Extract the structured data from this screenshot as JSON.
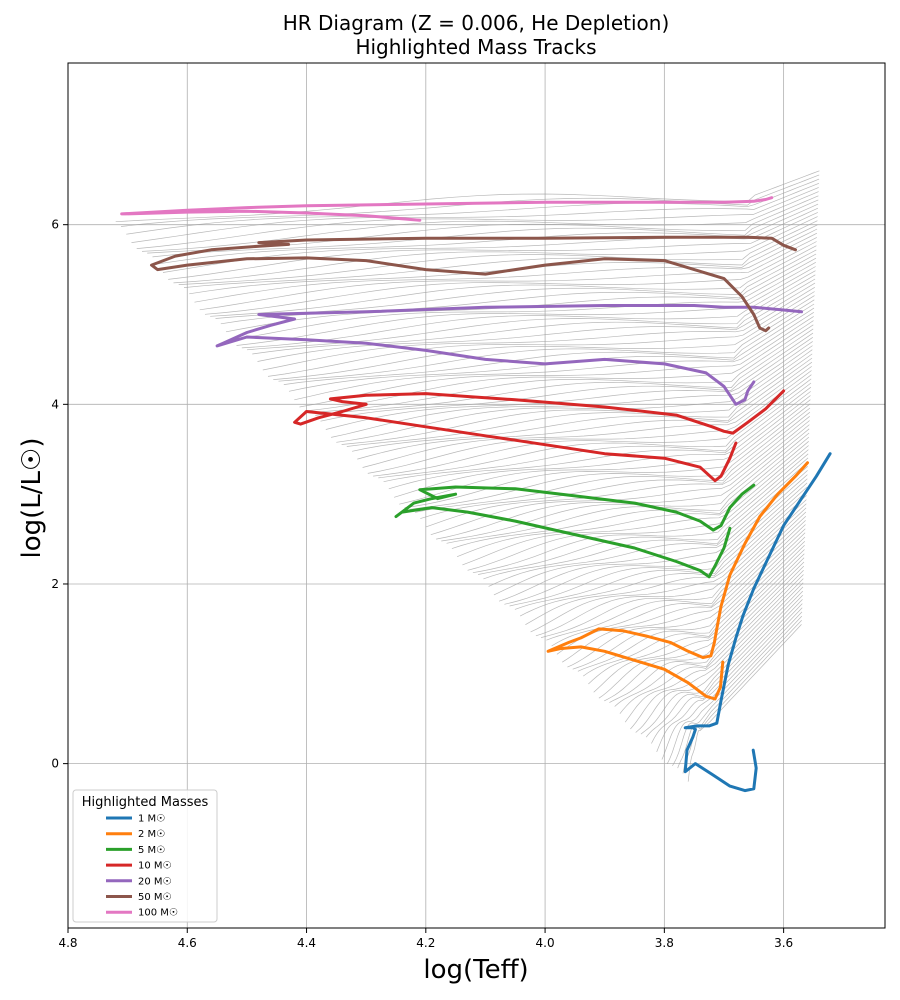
{
  "chart_data": {
    "type": "line",
    "title": "HR Diagram (Z = 0.006, He Depletion)",
    "subtitle": "Highlighted Mass Tracks",
    "xlabel": "log(Teff)",
    "ylabel": "log(L/L☉)",
    "xlim": [
      4.8,
      3.43
    ],
    "ylim": [
      -1.83,
      7.8
    ],
    "x_inverted": true,
    "grid": true,
    "x_ticks": [
      "4.8",
      "4.6",
      "4.4",
      "4.2",
      "4.0",
      "3.8",
      "3.6"
    ],
    "y_ticks": [
      "0",
      "2",
      "4",
      "6"
    ],
    "legend": {
      "title": "Highlighted Masses",
      "placement": "lower-left",
      "entries": [
        "1 M☉",
        "2 M☉",
        "5 M☉",
        "10 M☉",
        "20 M☉",
        "50 M☉",
        "100 M☉"
      ]
    },
    "series": [
      {
        "name": "1 M☉",
        "color": "#1f77b4",
        "x": [
          3.651,
          3.646,
          3.65,
          3.665,
          3.69,
          3.72,
          3.748,
          3.765,
          3.762,
          3.752,
          3.748,
          3.752,
          3.763,
          3.765,
          3.745,
          3.725,
          3.712,
          3.705,
          3.693,
          3.68,
          3.668,
          3.65,
          3.625,
          3.6,
          3.57,
          3.545,
          3.522
        ],
        "y": [
          0.15,
          -0.05,
          -0.28,
          -0.3,
          -0.25,
          -0.12,
          0.0,
          -0.09,
          0.15,
          0.3,
          0.38,
          0.4,
          0.4,
          0.4,
          0.42,
          0.42,
          0.45,
          0.7,
          1.1,
          1.4,
          1.65,
          1.95,
          2.3,
          2.65,
          2.95,
          3.2,
          3.45
        ]
      },
      {
        "name": "2 M☉",
        "color": "#ff7f0e",
        "x": [
          3.702,
          3.706,
          3.715,
          3.73,
          3.76,
          3.8,
          3.85,
          3.9,
          3.94,
          3.975,
          3.995,
          3.96,
          3.94,
          3.91,
          3.87,
          3.83,
          3.79,
          3.76,
          3.735,
          3.722,
          3.716,
          3.712,
          3.705,
          3.69,
          3.665,
          3.64,
          3.61,
          3.58,
          3.56
        ],
        "y": [
          1.13,
          0.85,
          0.72,
          0.75,
          0.9,
          1.05,
          1.15,
          1.25,
          1.3,
          1.28,
          1.25,
          1.35,
          1.4,
          1.5,
          1.48,
          1.42,
          1.35,
          1.25,
          1.18,
          1.2,
          1.35,
          1.5,
          1.75,
          2.1,
          2.45,
          2.75,
          3.0,
          3.2,
          3.35
        ]
      },
      {
        "name": "5 M☉",
        "color": "#2ba02b",
        "x": [
          3.69,
          3.7,
          3.715,
          3.725,
          3.74,
          3.78,
          3.85,
          3.95,
          4.05,
          4.13,
          4.19,
          4.24,
          4.25,
          4.22,
          4.19,
          4.15,
          4.18,
          4.21,
          4.15,
          4.05,
          3.95,
          3.85,
          3.78,
          3.74,
          3.718,
          3.705,
          3.69,
          3.67,
          3.65
        ],
        "y": [
          2.62,
          2.4,
          2.2,
          2.08,
          2.15,
          2.25,
          2.4,
          2.55,
          2.7,
          2.8,
          2.85,
          2.8,
          2.75,
          2.9,
          2.95,
          3.0,
          2.95,
          3.05,
          3.08,
          3.06,
          2.98,
          2.9,
          2.8,
          2.7,
          2.6,
          2.65,
          2.85,
          3.0,
          3.1
        ]
      },
      {
        "name": "10 M☉",
        "color": "#d62727",
        "x": [
          3.68,
          3.69,
          3.705,
          3.715,
          3.74,
          3.8,
          3.9,
          4.0,
          4.1,
          4.2,
          4.3,
          4.4,
          4.42,
          4.41,
          4.38,
          4.34,
          4.3,
          4.34,
          4.36,
          4.3,
          4.2,
          4.05,
          3.9,
          3.78,
          3.72,
          3.7,
          3.685,
          3.66,
          3.63,
          3.6
        ],
        "y": [
          3.57,
          3.4,
          3.2,
          3.15,
          3.3,
          3.4,
          3.45,
          3.55,
          3.65,
          3.75,
          3.85,
          3.92,
          3.8,
          3.78,
          3.85,
          3.92,
          4.0,
          4.03,
          4.06,
          4.1,
          4.12,
          4.05,
          3.97,
          3.88,
          3.75,
          3.7,
          3.68,
          3.8,
          3.95,
          4.15
        ]
      },
      {
        "name": "20 M☉",
        "color": "#9467bd",
        "x": [
          3.65,
          3.66,
          3.665,
          3.68,
          3.7,
          3.73,
          3.8,
          3.9,
          4.0,
          4.1,
          4.2,
          4.3,
          4.4,
          4.5,
          4.55,
          4.54,
          4.5,
          4.46,
          4.42,
          4.48,
          4.3,
          4.1,
          3.9,
          3.75,
          3.7,
          3.65,
          3.6,
          3.57
        ],
        "y": [
          4.25,
          4.15,
          4.05,
          4.0,
          4.2,
          4.35,
          4.45,
          4.5,
          4.45,
          4.5,
          4.6,
          4.68,
          4.72,
          4.75,
          4.65,
          4.68,
          4.8,
          4.88,
          4.95,
          5.0,
          5.03,
          5.08,
          5.1,
          5.1,
          5.08,
          5.08,
          5.05,
          5.03
        ]
      },
      {
        "name": "50 M☉",
        "color": "#8c564b",
        "x": [
          3.625,
          3.63,
          3.64,
          3.65,
          3.67,
          3.7,
          3.8,
          3.9,
          4.0,
          4.1,
          4.2,
          4.3,
          4.4,
          4.5,
          4.6,
          4.65,
          4.66,
          4.62,
          4.56,
          4.48,
          4.43,
          4.48,
          4.4,
          4.2,
          4.0,
          3.8,
          3.66,
          3.62,
          3.6,
          3.58
        ],
        "y": [
          4.85,
          4.82,
          4.85,
          5.0,
          5.2,
          5.4,
          5.6,
          5.62,
          5.55,
          5.45,
          5.5,
          5.6,
          5.63,
          5.62,
          5.55,
          5.5,
          5.55,
          5.65,
          5.72,
          5.76,
          5.78,
          5.8,
          5.83,
          5.85,
          5.85,
          5.86,
          5.86,
          5.85,
          5.77,
          5.72
        ]
      },
      {
        "name": "100 M☉",
        "color": "#e377c2",
        "x": [
          4.21,
          4.3,
          4.4,
          4.5,
          4.6,
          4.7,
          4.71,
          4.6,
          4.5,
          4.4,
          4.3,
          4.2,
          4.1,
          4.0,
          3.9,
          3.8,
          3.7,
          3.65,
          3.63,
          3.62
        ],
        "y": [
          6.05,
          6.1,
          6.13,
          6.15,
          6.14,
          6.12,
          6.12,
          6.16,
          6.19,
          6.21,
          6.22,
          6.23,
          6.24,
          6.25,
          6.25,
          6.25,
          6.25,
          6.26,
          6.28,
          6.3
        ]
      }
    ]
  }
}
